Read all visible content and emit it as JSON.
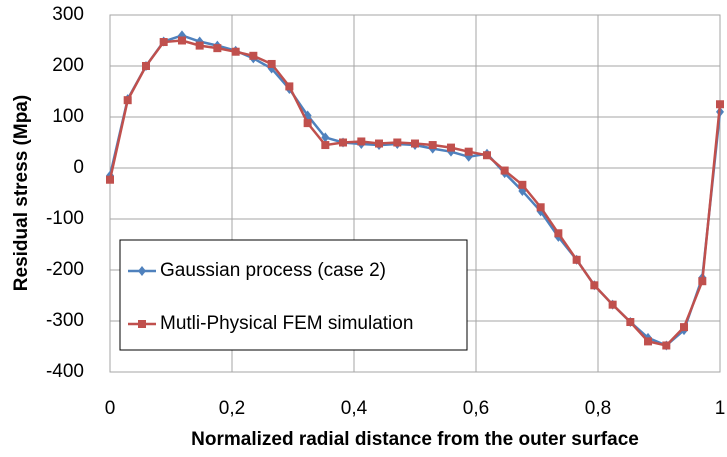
{
  "chart_data": {
    "type": "line",
    "xlabel": "Normalized radial distance from the outer surface",
    "ylabel": "Residual stress (Mpa)",
    "x": [
      0,
      0.029,
      0.059,
      0.088,
      0.118,
      0.147,
      0.176,
      0.206,
      0.235,
      0.265,
      0.294,
      0.324,
      0.353,
      0.382,
      0.412,
      0.441,
      0.471,
      0.5,
      0.529,
      0.559,
      0.588,
      0.618,
      0.647,
      0.676,
      0.706,
      0.735,
      0.765,
      0.794,
      0.824,
      0.853,
      0.882,
      0.912,
      0.941,
      0.971,
      1
    ],
    "series": [
      {
        "name": "Gaussian process (case 2)",
        "color": "#4f81bd",
        "marker": "diamond",
        "values": [
          -15,
          135,
          200,
          248,
          260,
          248,
          240,
          230,
          215,
          195,
          155,
          103,
          60,
          50,
          47,
          45,
          47,
          45,
          38,
          32,
          22,
          28,
          -10,
          -45,
          -85,
          -135,
          -180,
          -230,
          -268,
          -302,
          -333,
          -348,
          -318,
          -215,
          110
        ]
      },
      {
        "name": "Mutli-Physical FEM simulation",
        "color": "#c0504d",
        "marker": "square",
        "values": [
          -23,
          133,
          200,
          247,
          250,
          240,
          235,
          228,
          220,
          204,
          160,
          88,
          45,
          50,
          52,
          48,
          50,
          48,
          45,
          40,
          32,
          25,
          -5,
          -33,
          -77,
          -128,
          -180,
          -230,
          -268,
          -302,
          -340,
          -348,
          -312,
          -222,
          125
        ]
      }
    ],
    "xlim": [
      0,
      1
    ],
    "xticks": [
      0,
      {
        "value": 0.2,
        "label": "0,2"
      },
      {
        "value": 0.4,
        "label": "0,4"
      },
      {
        "value": 0.6,
        "label": "0,6"
      },
      {
        "value": 0.8,
        "label": "0,8"
      },
      1
    ],
    "ylim": [
      -400,
      300
    ],
    "yticks": [
      -400,
      -300,
      -200,
      -100,
      0,
      100,
      200,
      300
    ],
    "grid": true,
    "legend": "lower-left"
  }
}
